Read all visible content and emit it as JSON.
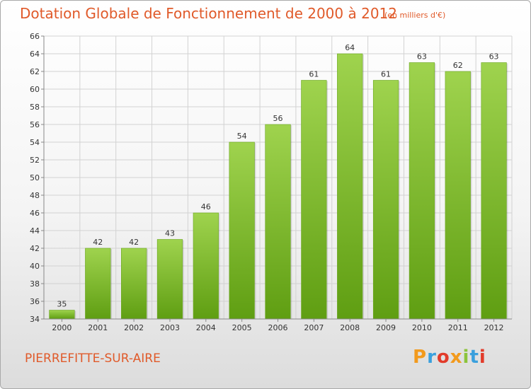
{
  "header": {
    "title": "Dotation Globale de Fonctionnement de 2000 à 2012",
    "unit_note": "(en milliers d'€)"
  },
  "footer": {
    "commune": "PIERREFITTE-SUR-AIRE",
    "logo_text": "Proxiti"
  },
  "colors": {
    "accent": "#e05a2a",
    "bar_top": "#9fd34e",
    "bar_bottom": "#5f9e12",
    "logo_letters": [
      "#f29a1d",
      "#3aa0dd",
      "#e23b2a",
      "#f29a1d",
      "#8cc43c",
      "#3aa0dd",
      "#e23b2a"
    ]
  },
  "chart_data": {
    "type": "bar",
    "title": "Dotation Globale de Fonctionnement de 2000 à 2012",
    "subtitle": "(en milliers d'€)",
    "categories": [
      "2000",
      "2001",
      "2002",
      "2003",
      "2004",
      "2005",
      "2006",
      "2007",
      "2008",
      "2009",
      "2010",
      "2011",
      "2012"
    ],
    "values": [
      35,
      42,
      42,
      43,
      46,
      54,
      56,
      61,
      64,
      61,
      63,
      62,
      63
    ],
    "ylim": [
      34,
      66
    ],
    "yticks": [
      34,
      36,
      38,
      40,
      42,
      44,
      46,
      48,
      50,
      52,
      54,
      56,
      58,
      60,
      62,
      64,
      66
    ],
    "grid": true,
    "data_labels": true
  }
}
